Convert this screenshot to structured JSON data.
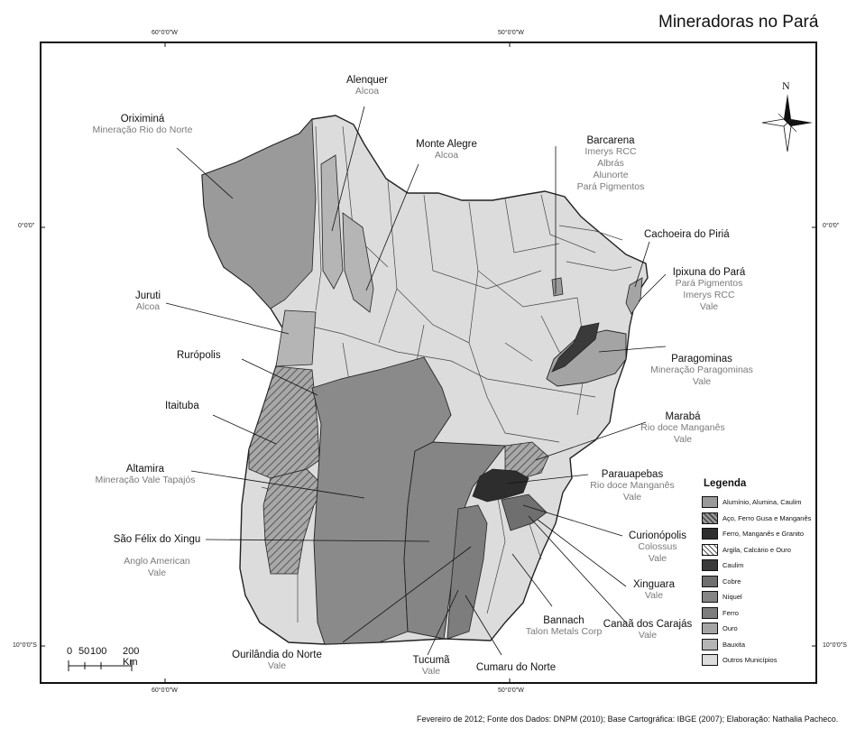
{
  "title": "Mineradoras no Pará",
  "coordinates": {
    "top_left": "60°0'0\"W",
    "top_right": "50°0'0\"W",
    "bottom_left": "60°0'0\"W",
    "bottom_right": "50°0'0\"W",
    "left_top": "0°0'0\"",
    "left_bottom": "10°0'0\"S",
    "right_top": "0°0'0\"",
    "right_bottom": "10°0'0\"S"
  },
  "north_label": "N",
  "scale_bar": {
    "labels": [
      "0",
      "50",
      "100",
      "200 Km"
    ]
  },
  "places": [
    {
      "name": "Oriximiná",
      "companies": "Mineração Rio do Norte"
    },
    {
      "name": "Alenquer",
      "companies": "Alcoa"
    },
    {
      "name": "Monte Alegre",
      "companies": "Alcoa"
    },
    {
      "name": "Barcarena",
      "companies": [
        "Imerys RCC",
        "Albrás",
        "Alunorte",
        "Pará Pigmentos"
      ]
    },
    {
      "name": "Cachoeira do Piriá",
      "companies": ""
    },
    {
      "name": "Ipixuna do Pará",
      "companies": [
        "Pará Pigmentos",
        "Imerys RCC",
        "Vale"
      ]
    },
    {
      "name": "Juruti",
      "companies": "Alcoa"
    },
    {
      "name": "Rurópolis",
      "companies": ""
    },
    {
      "name": "Paragominas",
      "companies": [
        "Mineração Paragominas",
        "Vale"
      ]
    },
    {
      "name": "Itaituba",
      "companies": ""
    },
    {
      "name": "Marabá",
      "companies": [
        "Rio doce Manganês",
        "Vale"
      ]
    },
    {
      "name": "Altamira",
      "companies": "Mineração Vale Tapajós"
    },
    {
      "name": "Parauapebas",
      "companies": [
        "Rio doce Manganês",
        "Vale"
      ]
    },
    {
      "name": "São Félix do Xingu",
      "companies": [
        "Anglo American",
        "Vale"
      ]
    },
    {
      "name": "Curionópolis",
      "companies": [
        "Colossus",
        "Vale"
      ]
    },
    {
      "name": "Xinguara",
      "companies": "Vale"
    },
    {
      "name": "Bannach",
      "companies": "Talon Metals Corp"
    },
    {
      "name": "Canaã dos Carajás",
      "companies": "Vale"
    },
    {
      "name": "Ourilândia do Norte",
      "companies": "Vale"
    },
    {
      "name": "Tucumã",
      "companies": "Vale"
    },
    {
      "name": "Cumaru do Norte",
      "companies": ""
    }
  ],
  "legend": {
    "title": "Legenda",
    "items": [
      {
        "label": "Alumínio, Alumina, Caulim",
        "color": "#9a9a9a",
        "pattern": "solid"
      },
      {
        "label": "Aço, Ferro Gusa e Manganês",
        "color": "#9a9a9a",
        "pattern": "hatch-dark"
      },
      {
        "label": "Ferro, Manganês e Granito",
        "color": "#2d2d2d",
        "pattern": "solid"
      },
      {
        "label": "Argila, Calcário e Ouro",
        "color": "#ffffff",
        "pattern": "hatch-light"
      },
      {
        "label": "Caulim",
        "color": "#3a3a3a",
        "pattern": "solid"
      },
      {
        "label": "Cobre",
        "color": "#6f6f6f",
        "pattern": "solid"
      },
      {
        "label": "Níquel",
        "color": "#858585",
        "pattern": "solid"
      },
      {
        "label": "Ferro",
        "color": "#7d7d7d",
        "pattern": "solid"
      },
      {
        "label": "Ouro",
        "color": "#a4a4a4",
        "pattern": "solid"
      },
      {
        "label": "Bauxita",
        "color": "#b5b5b5",
        "pattern": "solid"
      },
      {
        "label": "Outros Municípios",
        "color": "#dcdcdc",
        "pattern": "solid"
      }
    ]
  },
  "footer": "Fevereiro de 2012; Fonte dos Dados: DNPM (2010); Base Cartográfica: IBGE (2007);  Elaboração: Nathalia Pacheco."
}
